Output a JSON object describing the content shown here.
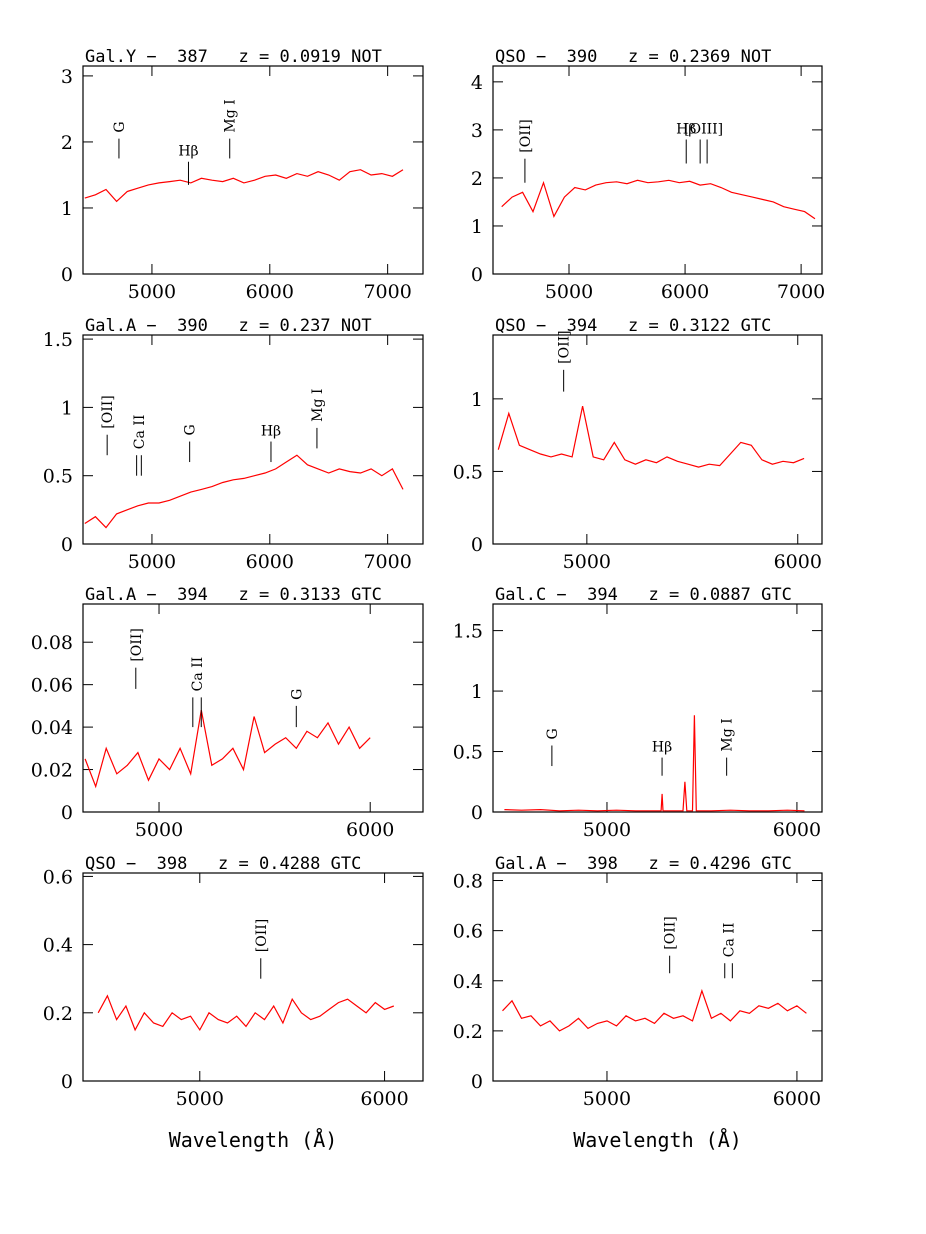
{
  "chart_data": [
    {
      "type": "line",
      "title": "Gal.Y −  387   z = 0.0919 NOT",
      "color": "#ff0000",
      "x": [
        4430,
        4520,
        4610,
        4700,
        4790,
        4880,
        4970,
        5060,
        5150,
        5240,
        5330,
        5420,
        5510,
        5600,
        5690,
        5780,
        5870,
        5960,
        6050,
        6140,
        6230,
        6320,
        6410,
        6500,
        6590,
        6680,
        6770,
        6860,
        6950,
        7040,
        7130
      ],
      "values": [
        1.15,
        1.2,
        1.28,
        1.1,
        1.25,
        1.3,
        1.35,
        1.38,
        1.4,
        1.42,
        1.38,
        1.45,
        1.42,
        1.4,
        1.45,
        1.38,
        1.42,
        1.48,
        1.5,
        1.45,
        1.52,
        1.48,
        1.55,
        1.5,
        1.42,
        1.55,
        1.58,
        1.5,
        1.52,
        1.48,
        1.58
      ],
      "xlim": [
        4415,
        7300
      ],
      "ylim": [
        0,
        3.15
      ],
      "xticks": [
        5000,
        6000,
        7000
      ],
      "yticks": [
        0,
        1,
        2,
        3
      ],
      "annotations": [
        {
          "label": "G",
          "x": [
            4720
          ],
          "y": [
            1.75,
            2.05
          ],
          "rotated": true
        },
        {
          "label": "Hβ",
          "x": [
            5310
          ],
          "y": [
            1.35,
            1.7
          ],
          "rotated": false
        },
        {
          "label": "Mg I",
          "x": [
            5660
          ],
          "y": [
            1.75,
            2.05
          ],
          "rotated": true
        }
      ]
    },
    {
      "type": "line",
      "title": "QSO −  390   z = 0.2369 NOT",
      "color": "#ff0000",
      "x": [
        4420,
        4510,
        4600,
        4690,
        4780,
        4870,
        4960,
        5050,
        5140,
        5230,
        5320,
        5410,
        5500,
        5590,
        5680,
        5770,
        5860,
        5950,
        6040,
        6130,
        6220,
        6310,
        6400,
        6490,
        6580,
        6670,
        6760,
        6850,
        6940,
        7030,
        7120
      ],
      "values": [
        1.4,
        1.6,
        1.7,
        1.3,
        1.9,
        1.2,
        1.6,
        1.8,
        1.75,
        1.85,
        1.9,
        1.92,
        1.88,
        1.95,
        1.9,
        1.92,
        1.95,
        1.9,
        1.93,
        1.85,
        1.88,
        1.8,
        1.7,
        1.65,
        1.6,
        1.55,
        1.5,
        1.4,
        1.35,
        1.3,
        1.15
      ],
      "xlim": [
        4345,
        7180
      ],
      "ylim": [
        0,
        4.33
      ],
      "xticks": [
        5000,
        6000,
        7000
      ],
      "yticks": [
        0,
        1,
        2,
        3,
        4
      ],
      "annotations": [
        {
          "label": "[OII]",
          "x": [
            4620
          ],
          "y": [
            1.9,
            2.4
          ],
          "rotated": true
        },
        {
          "label": "Hβ",
          "x": [
            6010
          ],
          "y": [
            2.3,
            2.8
          ],
          "rotated": false
        },
        {
          "label": "[OIII]",
          "x": [
            6130,
            6190
          ],
          "y": [
            2.3,
            2.8
          ],
          "rotated": false
        }
      ]
    },
    {
      "type": "line",
      "title": "Gal.A −  390   z = 0.237 NOT",
      "color": "#ff0000",
      "x": [
        4430,
        4520,
        4610,
        4700,
        4790,
        4880,
        4970,
        5060,
        5150,
        5240,
        5330,
        5420,
        5510,
        5600,
        5690,
        5780,
        5870,
        5960,
        6050,
        6140,
        6230,
        6320,
        6410,
        6500,
        6590,
        6680,
        6770,
        6860,
        6950,
        7040,
        7130
      ],
      "values": [
        0.15,
        0.2,
        0.12,
        0.22,
        0.25,
        0.28,
        0.3,
        0.3,
        0.32,
        0.35,
        0.38,
        0.4,
        0.42,
        0.45,
        0.47,
        0.48,
        0.5,
        0.52,
        0.55,
        0.6,
        0.65,
        0.58,
        0.55,
        0.52,
        0.55,
        0.53,
        0.52,
        0.55,
        0.5,
        0.55,
        0.4
      ],
      "xlim": [
        4415,
        7300
      ],
      "ylim": [
        0,
        1.53
      ],
      "xticks": [
        5000,
        6000,
        7000
      ],
      "yticks": [
        0,
        0.5,
        1,
        1.5
      ],
      "annotations": [
        {
          "label": "[OII]",
          "x": [
            4620
          ],
          "y": [
            0.65,
            0.8
          ],
          "rotated": true
        },
        {
          "label": "Ca II",
          "x": [
            4870,
            4910
          ],
          "y": [
            0.5,
            0.65
          ],
          "rotated": true
        },
        {
          "label": "G",
          "x": [
            5320
          ],
          "y": [
            0.6,
            0.75
          ],
          "rotated": true
        },
        {
          "label": "Hβ",
          "x": [
            6010
          ],
          "y": [
            0.6,
            0.75
          ],
          "rotated": false
        },
        {
          "label": "Mg I",
          "x": [
            6400
          ],
          "y": [
            0.7,
            0.85
          ],
          "rotated": true
        }
      ]
    },
    {
      "type": "line",
      "title": "QSO −  394   z = 0.3122 GTC",
      "color": "#ff0000",
      "x": [
        4580,
        4630,
        4680,
        4730,
        4780,
        4830,
        4880,
        4930,
        4980,
        5030,
        5080,
        5130,
        5180,
        5230,
        5280,
        5330,
        5380,
        5430,
        5480,
        5530,
        5580,
        5630,
        5680,
        5730,
        5780,
        5830,
        5880,
        5930,
        5980,
        6030
      ],
      "values": [
        0.65,
        0.9,
        0.68,
        0.65,
        0.62,
        0.6,
        0.62,
        0.6,
        0.95,
        0.6,
        0.58,
        0.7,
        0.58,
        0.55,
        0.58,
        0.56,
        0.6,
        0.57,
        0.55,
        0.53,
        0.55,
        0.54,
        0.62,
        0.7,
        0.68,
        0.58,
        0.55,
        0.57,
        0.56,
        0.59
      ],
      "xlim": [
        4555,
        6115
      ],
      "ylim": [
        0,
        1.44
      ],
      "xticks": [
        5000,
        6000
      ],
      "yticks": [
        0,
        0.5,
        1
      ],
      "annotations": [
        {
          "label": "[OII]",
          "x": [
            4890
          ],
          "y": [
            1.05,
            1.2
          ],
          "rotated": true
        }
      ]
    },
    {
      "type": "line",
      "title": "Gal.A −  394   z = 0.3133 GTC",
      "color": "#ff0000",
      "x": [
        4650,
        4700,
        4750,
        4800,
        4850,
        4900,
        4950,
        5000,
        5050,
        5100,
        5150,
        5200,
        5250,
        5300,
        5350,
        5400,
        5450,
        5500,
        5550,
        5600,
        5650,
        5700,
        5750,
        5800,
        5850,
        5900,
        5950,
        6000
      ],
      "values": [
        0.025,
        0.012,
        0.03,
        0.018,
        0.022,
        0.028,
        0.015,
        0.025,
        0.02,
        0.03,
        0.018,
        0.048,
        0.022,
        0.025,
        0.03,
        0.02,
        0.045,
        0.028,
        0.032,
        0.035,
        0.03,
        0.038,
        0.035,
        0.042,
        0.032,
        0.04,
        0.03,
        0.035
      ],
      "xlim": [
        4640,
        6250
      ],
      "ylim": [
        0,
        0.098
      ],
      "xticks": [
        5000,
        6000
      ],
      "yticks": [
        0,
        0.02,
        0.04,
        0.06,
        0.08
      ],
      "annotations": [
        {
          "label": "[OII]",
          "x": [
            4890
          ],
          "y": [
            0.058,
            0.068
          ],
          "rotated": true
        },
        {
          "label": "Ca II",
          "x": [
            5160,
            5200
          ],
          "y": [
            0.04,
            0.054
          ],
          "rotated": true
        },
        {
          "label": "G",
          "x": [
            5650
          ],
          "y": [
            0.04,
            0.05
          ],
          "rotated": true
        }
      ]
    },
    {
      "type": "line",
      "title": "Gal.C −  394   z = 0.0887 GTC",
      "color": "#ff0000",
      "x": [
        4460,
        4550,
        4650,
        4750,
        4850,
        4950,
        5050,
        5150,
        5250,
        5285,
        5290,
        5295,
        5350,
        5400,
        5410,
        5420,
        5450,
        5460,
        5470,
        5550,
        5650,
        5750,
        5850,
        5950,
        6040
      ],
      "values": [
        0.02,
        0.015,
        0.02,
        0.01,
        0.015,
        0.01,
        0.015,
        0.01,
        0.01,
        0.01,
        0.15,
        0.01,
        0.01,
        0.01,
        0.25,
        0.01,
        0.01,
        0.8,
        0.01,
        0.01,
        0.015,
        0.01,
        0.01,
        0.015,
        0.01
      ],
      "xlim": [
        4400,
        6132
      ],
      "ylim": [
        0,
        1.72
      ],
      "xticks": [
        5000,
        6000
      ],
      "yticks": [
        0,
        0.5,
        1,
        1.5
      ],
      "annotations": [
        {
          "label": "G",
          "x": [
            4710
          ],
          "y": [
            0.38,
            0.55
          ],
          "rotated": true
        },
        {
          "label": "Hβ",
          "x": [
            5290
          ],
          "y": [
            0.3,
            0.45
          ],
          "rotated": false
        },
        {
          "label": "Mg I",
          "x": [
            5630
          ],
          "y": [
            0.3,
            0.45
          ],
          "rotated": true
        }
      ]
    },
    {
      "type": "line",
      "title": "QSO −  398   z = 0.4288 GTC",
      "color": "#ff0000",
      "xlabel": "Wavelength (Å)",
      "x": [
        4450,
        4500,
        4550,
        4600,
        4650,
        4700,
        4750,
        4800,
        4850,
        4900,
        4950,
        5000,
        5050,
        5100,
        5150,
        5200,
        5250,
        5300,
        5350,
        5400,
        5450,
        5500,
        5550,
        5600,
        5650,
        5700,
        5750,
        5800,
        5850,
        5900,
        5950,
        6000,
        6050
      ],
      "values": [
        0.2,
        0.25,
        0.18,
        0.22,
        0.15,
        0.2,
        0.17,
        0.16,
        0.2,
        0.18,
        0.19,
        0.15,
        0.2,
        0.18,
        0.17,
        0.19,
        0.16,
        0.2,
        0.18,
        0.22,
        0.17,
        0.24,
        0.2,
        0.18,
        0.19,
        0.21,
        0.23,
        0.24,
        0.22,
        0.2,
        0.23,
        0.21,
        0.22
      ],
      "xlim": [
        4368,
        6208
      ],
      "ylim": [
        0,
        0.61
      ],
      "xticks": [
        5000,
        6000
      ],
      "yticks": [
        0,
        0.2,
        0.4,
        0.6
      ],
      "annotations": [
        {
          "label": "[OII]",
          "x": [
            5330
          ],
          "y": [
            0.3,
            0.36
          ],
          "rotated": true
        }
      ]
    },
    {
      "type": "line",
      "title": "Gal.A −  398   z = 0.4296 GTC",
      "color": "#ff0000",
      "xlabel": "Wavelength (Å)",
      "x": [
        4450,
        4500,
        4550,
        4600,
        4650,
        4700,
        4750,
        4800,
        4850,
        4900,
        4950,
        5000,
        5050,
        5100,
        5150,
        5200,
        5250,
        5300,
        5350,
        5400,
        5450,
        5500,
        5550,
        5600,
        5650,
        5700,
        5750,
        5800,
        5850,
        5900,
        5950,
        6000,
        6050
      ],
      "values": [
        0.28,
        0.32,
        0.25,
        0.26,
        0.22,
        0.24,
        0.2,
        0.22,
        0.25,
        0.21,
        0.23,
        0.24,
        0.22,
        0.26,
        0.24,
        0.25,
        0.23,
        0.27,
        0.25,
        0.26,
        0.24,
        0.36,
        0.25,
        0.27,
        0.24,
        0.28,
        0.27,
        0.3,
        0.29,
        0.31,
        0.28,
        0.3,
        0.27
      ],
      "xlim": [
        4400,
        6132
      ],
      "ylim": [
        0,
        0.83
      ],
      "xticks": [
        5000,
        6000
      ],
      "yticks": [
        0,
        0.2,
        0.4,
        0.6,
        0.8
      ],
      "annotations": [
        {
          "label": "[OII]",
          "x": [
            5330
          ],
          "y": [
            0.43,
            0.5
          ],
          "rotated": true
        },
        {
          "label": "Ca II",
          "x": [
            5620,
            5660
          ],
          "y": [
            0.41,
            0.47
          ],
          "rotated": true
        }
      ]
    }
  ]
}
